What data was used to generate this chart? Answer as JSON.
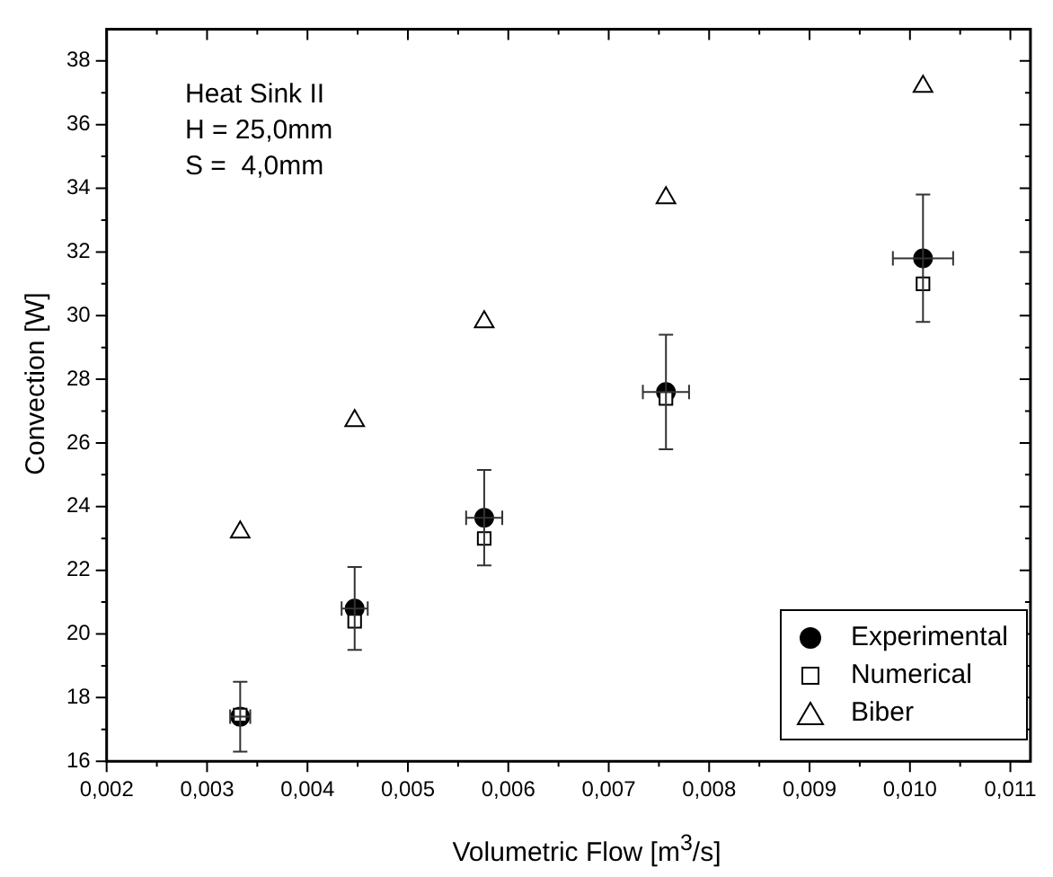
{
  "chart_data": {
    "type": "scatter",
    "xlabel": "Volumetric Flow [m$^{3}$/s]",
    "ylabel": "Convection [W]",
    "annotations": [
      "Heat Sink II",
      "H = 25,0mm",
      "S =  4,0mm"
    ],
    "x": [
      0.00333,
      0.00447,
      0.00576,
      0.00757,
      0.01013
    ],
    "series": [
      {
        "name": "Experimental",
        "color": "#000000",
        "marker": "circle",
        "values": [
          17.4,
          20.8,
          23.65,
          27.6,
          31.8
        ],
        "errors": [
          1.1,
          1.3,
          1.5,
          1.8,
          2.0
        ],
        "xerrors": [
          0.0001,
          0.00013,
          0.00018,
          0.00023,
          0.0003
        ]
      },
      {
        "name": "Numerical",
        "color": "#000000",
        "marker": "square",
        "values": [
          17.45,
          20.4,
          23.0,
          27.4,
          31.0
        ]
      },
      {
        "name": "Biber",
        "color": "#000000",
        "marker": "triangle",
        "values": [
          23.2,
          26.7,
          29.8,
          33.7,
          37.2
        ]
      }
    ],
    "xlim": [
      0.002,
      0.0112
    ],
    "ylim": [
      16,
      39
    ],
    "xticks": [
      {
        "value": 0.002,
        "label": "0,002"
      },
      {
        "value": 0.003,
        "label": "0,003"
      },
      {
        "value": 0.004,
        "label": "0,004"
      },
      {
        "value": 0.005,
        "label": "0,005"
      },
      {
        "value": 0.006,
        "label": "0,006"
      },
      {
        "value": 0.007,
        "label": "0,007"
      },
      {
        "value": 0.008,
        "label": "0,008"
      },
      {
        "value": 0.009,
        "label": "0,009"
      },
      {
        "value": 0.01,
        "label": "0,010"
      },
      {
        "value": 0.011,
        "label": "0,011"
      }
    ],
    "yticks": [
      16,
      18,
      20,
      22,
      24,
      26,
      28,
      30,
      32,
      34,
      36,
      38
    ],
    "grid": false,
    "legend": "bottom right"
  }
}
